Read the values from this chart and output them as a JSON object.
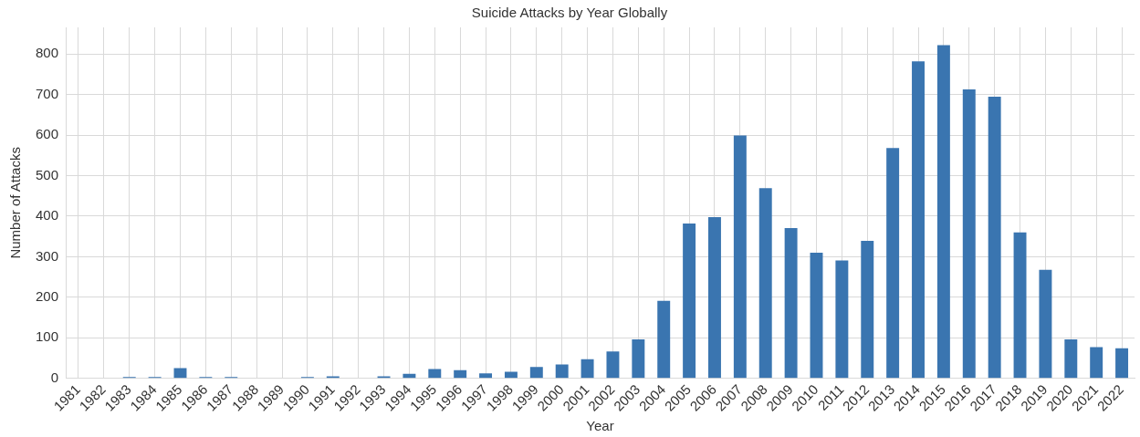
{
  "chart_data": {
    "type": "bar",
    "title": "Suicide Attacks by Year Globally",
    "xlabel": "Year",
    "ylabel": "Number of Attacks",
    "categories": [
      "1981",
      "1982",
      "1983",
      "1984",
      "1985",
      "1986",
      "1987",
      "1988",
      "1989",
      "1990",
      "1991",
      "1992",
      "1993",
      "1994",
      "1995",
      "1996",
      "1997",
      "1998",
      "1999",
      "2000",
      "2001",
      "2002",
      "2003",
      "2004",
      "2005",
      "2006",
      "2007",
      "2008",
      "2009",
      "2010",
      "2011",
      "2012",
      "2013",
      "2014",
      "2015",
      "2016",
      "2017",
      "2018",
      "2019",
      "2020",
      "2021",
      "2022"
    ],
    "values": [
      0,
      0,
      3,
      3,
      25,
      3,
      3,
      0,
      0,
      3,
      5,
      0,
      5,
      11,
      23,
      20,
      12,
      16,
      28,
      34,
      47,
      66,
      96,
      191,
      382,
      398,
      599,
      469,
      371,
      310,
      291,
      339,
      568,
      782,
      822,
      713,
      695,
      360,
      268,
      96,
      77,
      74
    ],
    "color": "#3a75b0",
    "ylim": [
      0,
      866
    ],
    "yticks": [
      0,
      100,
      200,
      300,
      400,
      500,
      600,
      700,
      800
    ],
    "grid": true,
    "legend": false
  }
}
